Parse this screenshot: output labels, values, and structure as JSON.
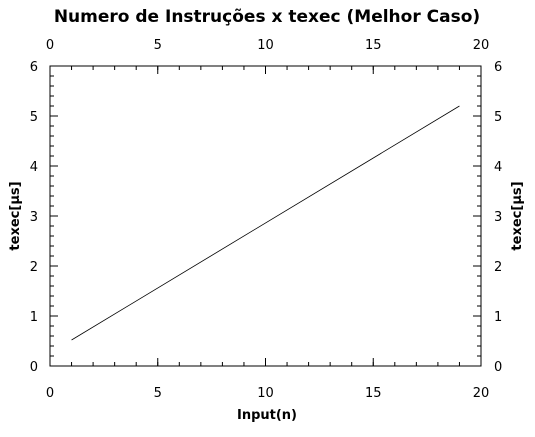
{
  "chart_data": {
    "type": "line",
    "title": "Numero de Instruções x texec (Melhor Caso)",
    "xlabel": "Input(n)",
    "ylabel": "texec[µs]",
    "ylabel_right": "texec[µs]",
    "xlim": [
      0,
      20
    ],
    "ylim": [
      0,
      6
    ],
    "x_ticks": [
      "0",
      "5",
      "10",
      "15",
      "20"
    ],
    "y_ticks": [
      "0",
      "1",
      "2",
      "3",
      "4",
      "5",
      "6"
    ],
    "x_minor_step": 1,
    "y_minor_step": 0.2,
    "grid": false,
    "line_color": "#000000",
    "series": [
      {
        "x": [
          1,
          19
        ],
        "y": [
          0.52,
          5.2
        ]
      }
    ]
  }
}
